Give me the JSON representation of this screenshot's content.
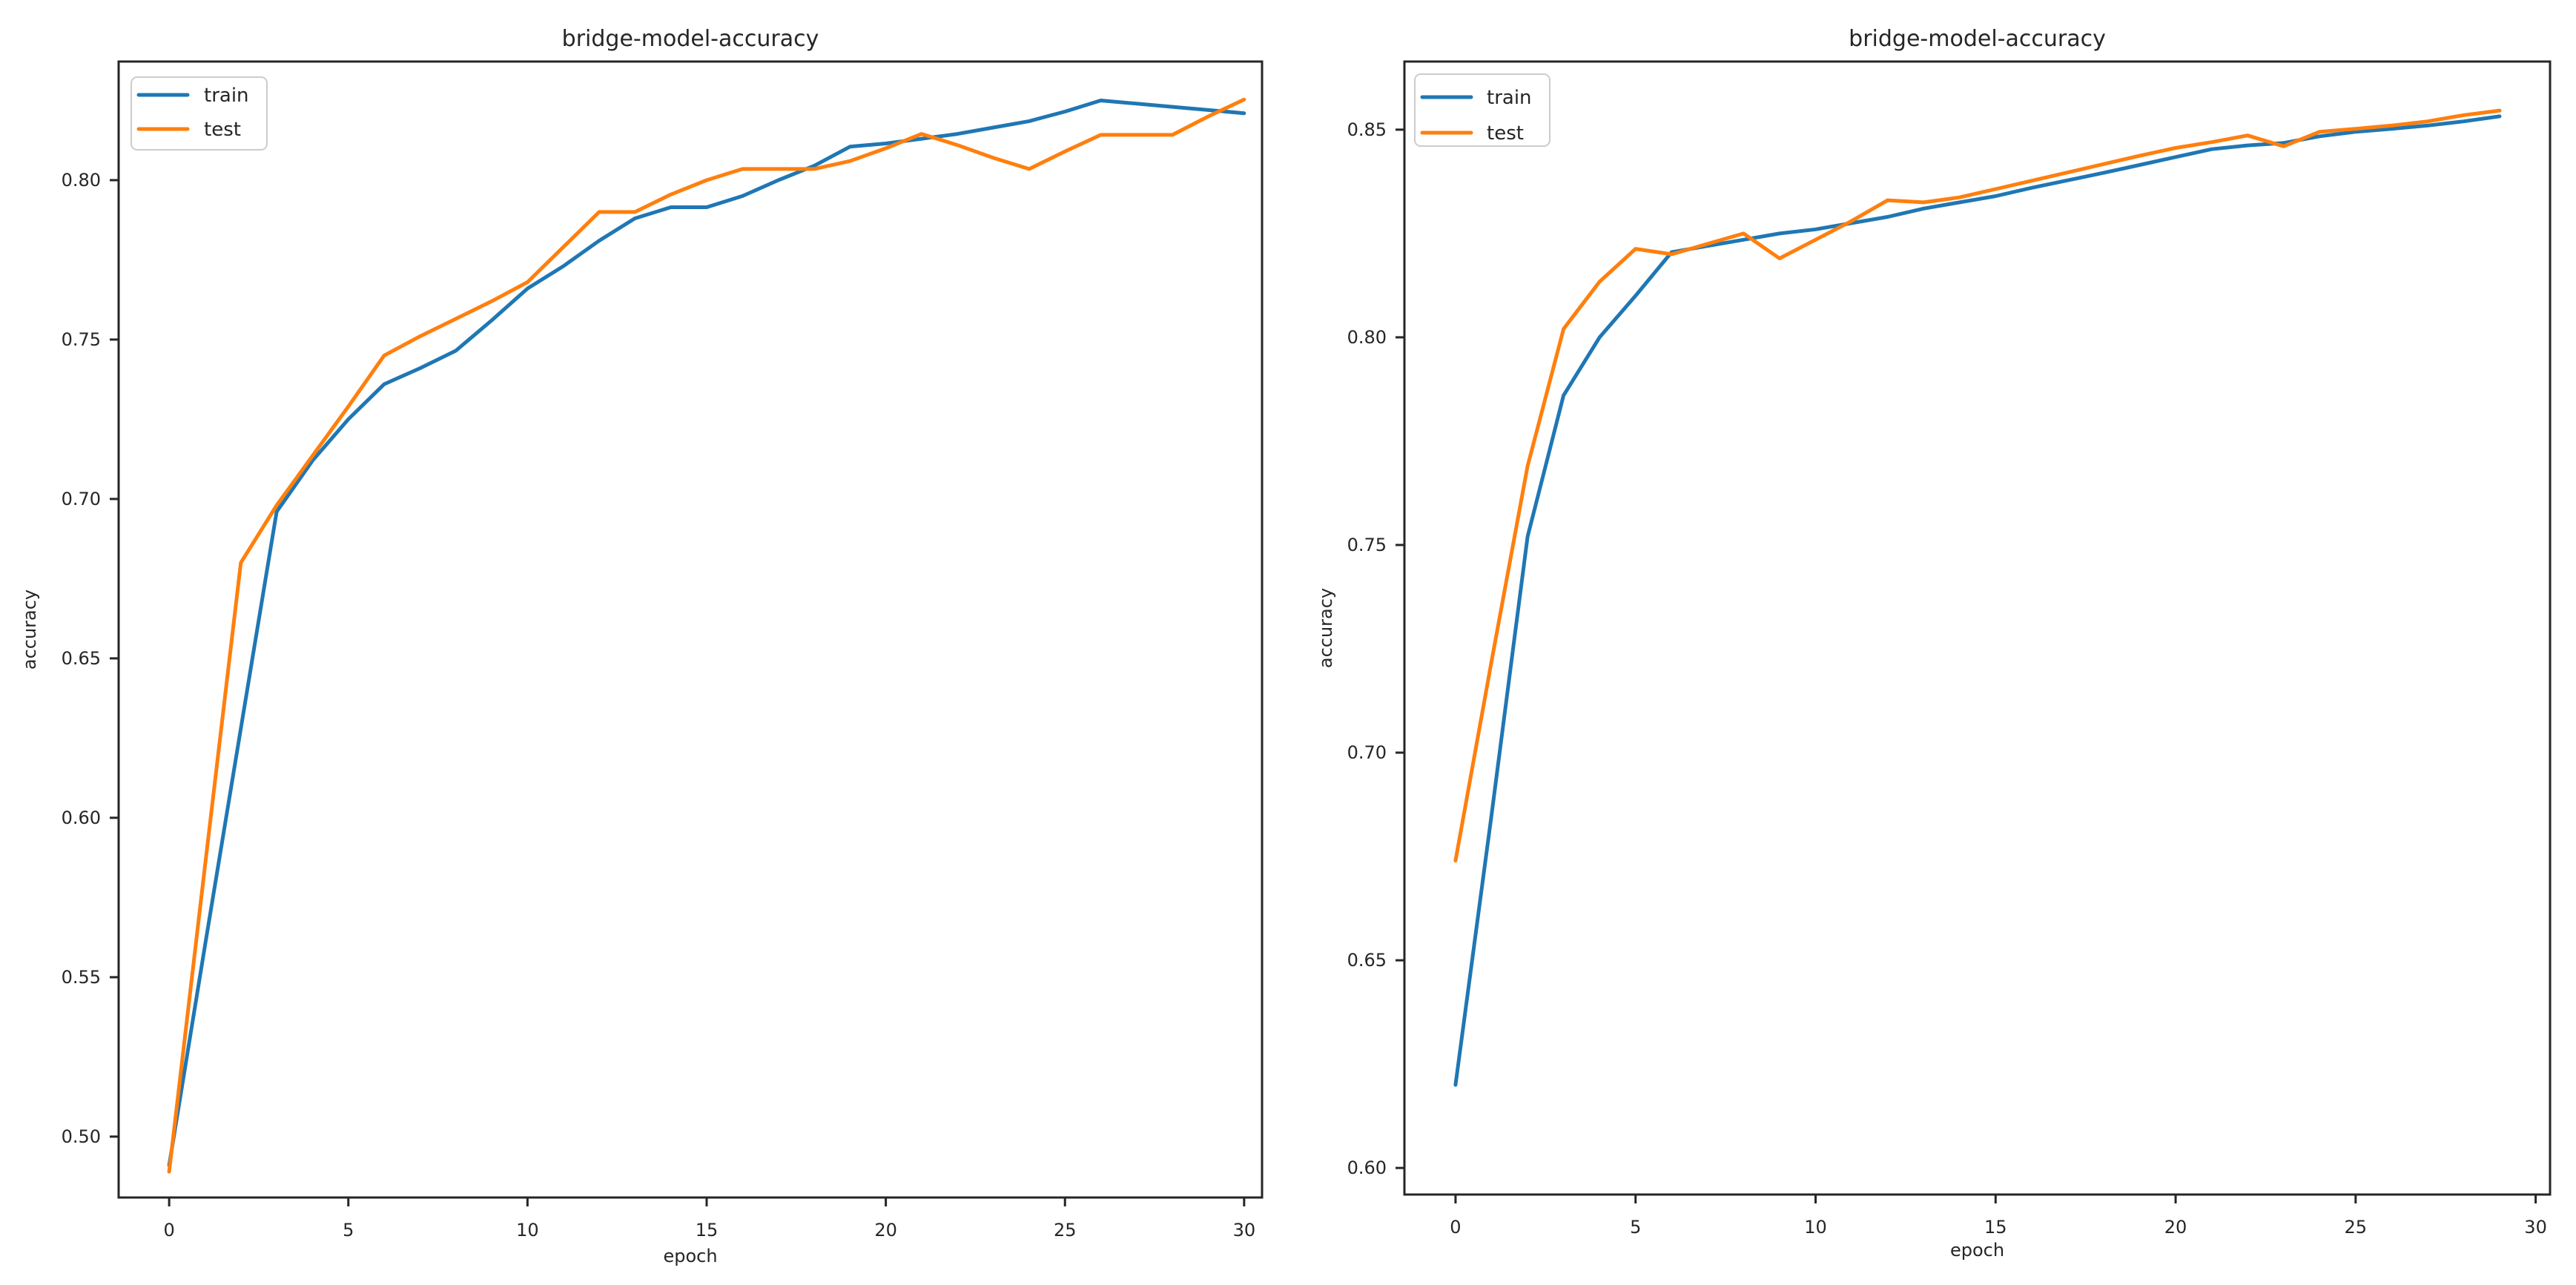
{
  "page": {
    "background": "#ffffff",
    "text_color": "#262626",
    "axis_color": "#262626"
  },
  "chart_data": [
    {
      "type": "line",
      "title": "bridge-model-accuracy",
      "xlabel": "epoch",
      "ylabel": "accuracy",
      "grid": false,
      "legend": {
        "position": "upper-left",
        "entries": [
          "train",
          "test"
        ]
      },
      "xlim": [
        -1.41,
        30.5
      ],
      "ylim": [
        0.4809,
        0.8372
      ],
      "x_ticks": [
        0,
        5,
        10,
        15,
        20,
        25,
        30
      ],
      "x_tick_labels": [
        "0",
        "5",
        "10",
        "15",
        "20",
        "25",
        "30"
      ],
      "y_ticks": [
        0.5,
        0.55,
        0.6,
        0.65,
        0.7,
        0.75,
        0.8
      ],
      "y_tick_labels": [
        "0.50",
        "0.55",
        "0.60",
        "0.65",
        "0.70",
        "0.75",
        "0.80"
      ],
      "x": [
        0,
        1,
        2,
        3,
        4,
        5,
        6,
        7,
        8,
        9,
        10,
        11,
        12,
        13,
        14,
        15,
        16,
        17,
        18,
        19,
        20,
        21,
        22,
        23,
        24,
        25,
        26,
        27,
        28,
        29,
        30
      ],
      "series": [
        {
          "name": "train",
          "color": "#1f77b4",
          "values": [
            0.491,
            0.56,
            0.628,
            0.696,
            0.712,
            0.725,
            0.736,
            0.741,
            0.7465,
            0.756,
            0.766,
            0.773,
            0.781,
            0.788,
            0.7915,
            0.7915,
            0.795,
            0.8,
            0.8045,
            0.8105,
            0.8115,
            0.813,
            0.8145,
            0.8165,
            0.8185,
            0.8215,
            0.825,
            0.824,
            0.823,
            0.822,
            0.821
          ]
        },
        {
          "name": "test",
          "color": "#ff7f0e",
          "values": [
            0.489,
            0.585,
            0.68,
            0.698,
            0.7135,
            0.729,
            0.745,
            0.751,
            0.7565,
            0.762,
            0.768,
            0.779,
            0.79,
            0.79,
            0.7955,
            0.8,
            0.8035,
            0.8035,
            0.8035,
            0.806,
            0.81,
            0.8145,
            0.811,
            0.807,
            0.8035,
            0.809,
            0.8142,
            0.8142,
            0.8142,
            0.82,
            0.8253
          ]
        }
      ]
    },
    {
      "type": "line",
      "title": "bridge-model-accuracy",
      "xlabel": "epoch",
      "ylabel": "accuracy",
      "grid": false,
      "legend": {
        "position": "upper-left",
        "entries": [
          "train",
          "test"
        ]
      },
      "xlim": [
        -1.42,
        30.4
      ],
      "ylim": [
        0.5936,
        0.8664
      ],
      "x_ticks": [
        0,
        5,
        10,
        15,
        20,
        25,
        30
      ],
      "x_tick_labels": [
        "0",
        "5",
        "10",
        "15",
        "20",
        "25",
        "30"
      ],
      "y_ticks": [
        0.6,
        0.65,
        0.7,
        0.75,
        0.8,
        0.85
      ],
      "y_tick_labels": [
        "0.60",
        "0.65",
        "0.70",
        "0.75",
        "0.80",
        "0.85"
      ],
      "x": [
        0,
        1,
        2,
        3,
        4,
        5,
        6,
        7,
        8,
        9,
        10,
        11,
        12,
        13,
        14,
        15,
        16,
        17,
        18,
        19,
        20,
        21,
        22,
        23,
        24,
        25,
        26,
        27,
        28,
        29
      ],
      "series": [
        {
          "name": "train",
          "color": "#1f77b4",
          "values": [
            0.62,
            0.685,
            0.752,
            0.786,
            0.8,
            0.81,
            0.8205,
            0.822,
            0.8235,
            0.825,
            0.826,
            0.8275,
            0.829,
            0.831,
            0.8325,
            0.834,
            0.836,
            0.8378,
            0.8396,
            0.8415,
            0.8434,
            0.8453,
            0.8462,
            0.8468,
            0.8484,
            0.8495,
            0.8502,
            0.851,
            0.852,
            0.8532
          ]
        },
        {
          "name": "test",
          "color": "#ff7f0e",
          "values": [
            0.674,
            0.722,
            0.769,
            0.802,
            0.8134,
            0.8213,
            0.82,
            0.8225,
            0.825,
            0.819,
            0.8235,
            0.828,
            0.833,
            0.8325,
            0.8337,
            0.8357,
            0.8377,
            0.8397,
            0.8417,
            0.8437,
            0.8456,
            0.847,
            0.8486,
            0.846,
            0.8495,
            0.8502,
            0.851,
            0.852,
            0.8535,
            0.8546
          ]
        }
      ]
    }
  ]
}
